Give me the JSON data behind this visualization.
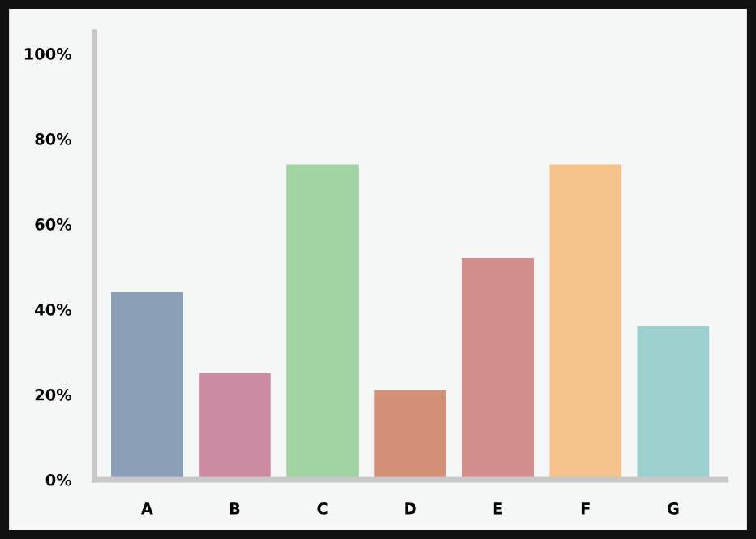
{
  "chart_data": {
    "type": "bar",
    "categories": [
      "A",
      "B",
      "C",
      "D",
      "E",
      "F",
      "G"
    ],
    "values": [
      44,
      25,
      74,
      21,
      52,
      74,
      36
    ],
    "colors": [
      "#8aa0b6",
      "#cb8ca3",
      "#a1d3a3",
      "#d48f78",
      "#d48e8c",
      "#f4c38b",
      "#9dcfcf"
    ],
    "ylim": [
      0,
      105
    ],
    "yticks": [
      {
        "value": 0,
        "label": "0%"
      },
      {
        "value": 20,
        "label": "20%"
      },
      {
        "value": 40,
        "label": "40%"
      },
      {
        "value": 60,
        "label": "60%"
      },
      {
        "value": 80,
        "label": "80%"
      },
      {
        "value": 100,
        "label": "100%"
      }
    ],
    "grid": false,
    "legend": false
  }
}
